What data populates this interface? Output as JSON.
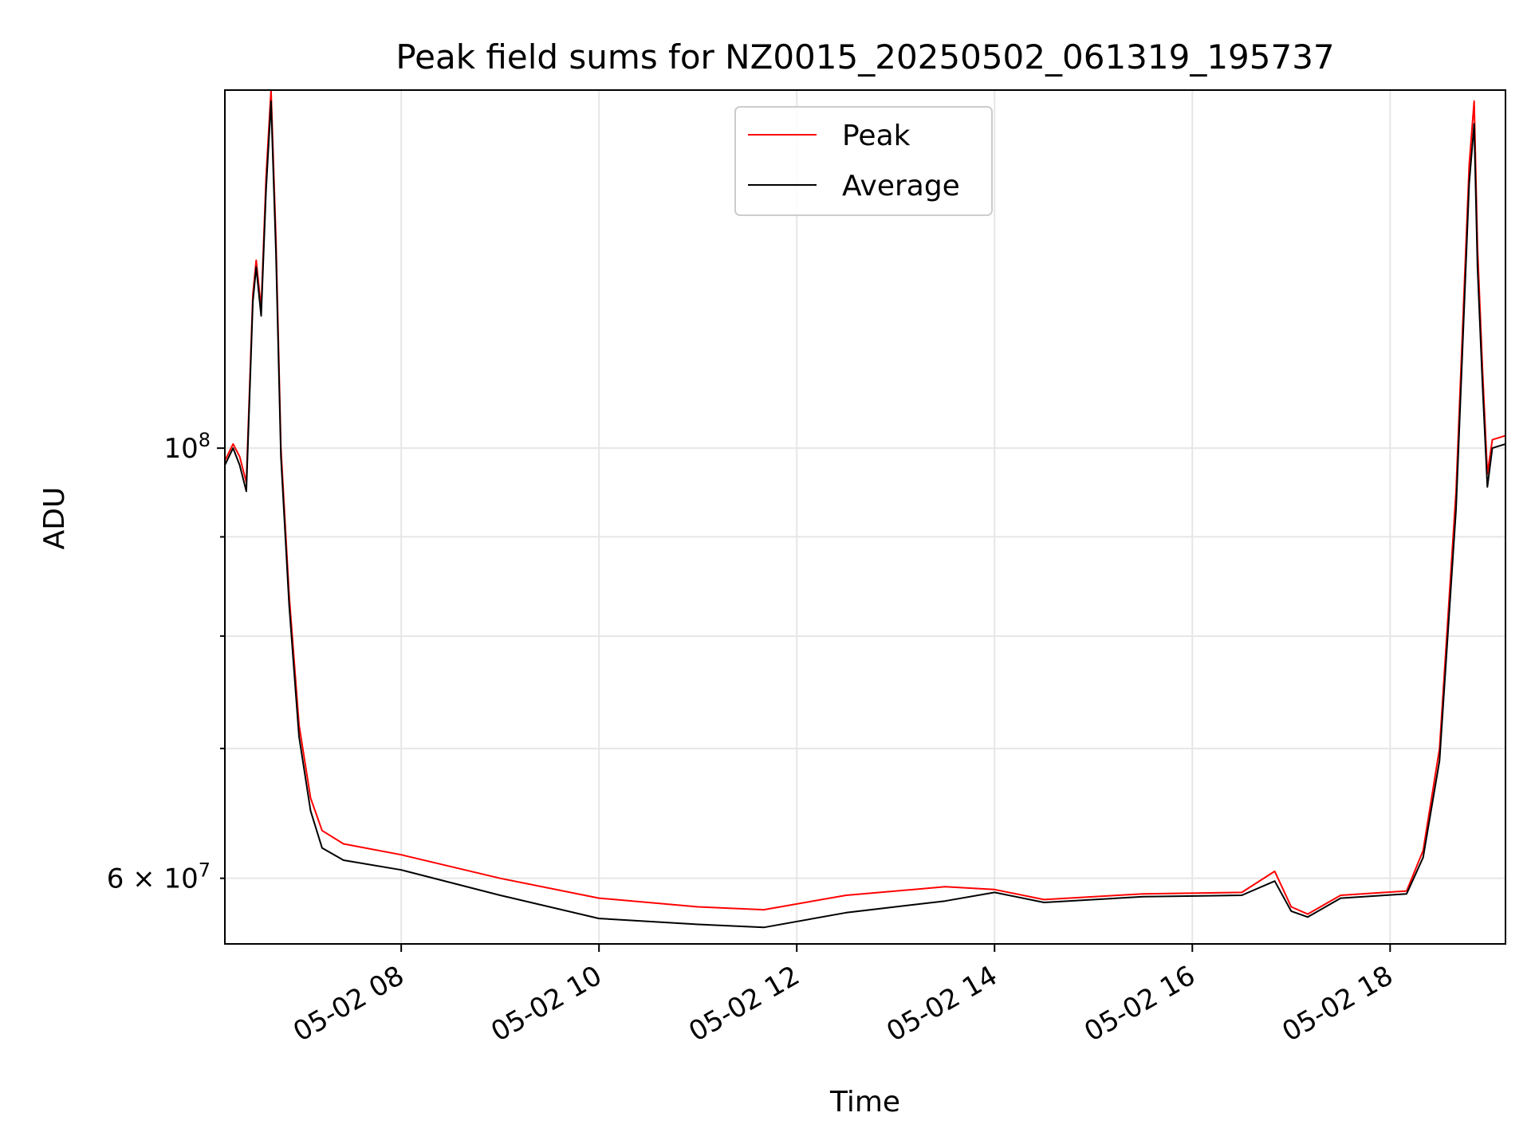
{
  "chart_data": {
    "type": "line",
    "title": "Peak field sums for NZ0015_20250502_061319_195737",
    "xlabel": "Time",
    "ylabel": "ADU",
    "yscale": "log",
    "x_range": [
      "2025-05-02 06:13",
      "2025-05-02 19:10"
    ],
    "ylim": [
      55500000,
      153000000
    ],
    "x_ticks": [
      "05-02 08",
      "05-02 10",
      "05-02 12",
      "05-02 14",
      "05-02 16",
      "05-02 18"
    ],
    "y_ticks_major": [
      {
        "value": 100000000,
        "base": "10",
        "exp": "8"
      }
    ],
    "y_ticks_minor": [
      {
        "value": 60000000,
        "mantissa": "6",
        "base": "10",
        "exp": "7"
      },
      {
        "value": 70000000
      },
      {
        "value": 80000000
      },
      {
        "value": 90000000
      }
    ],
    "grid": true,
    "legend_position": "upper center",
    "series": [
      {
        "name": "Peak",
        "color": "#ff0000",
        "points": [
          [
            "2025-05-02 06:13",
            98500000
          ],
          [
            "2025-05-02 06:18",
            100500000
          ],
          [
            "2025-05-02 06:22",
            99000000
          ],
          [
            "2025-05-02 06:26",
            96000000
          ],
          [
            "2025-05-02 06:30",
            120000000
          ],
          [
            "2025-05-02 06:32",
            125000000
          ],
          [
            "2025-05-02 06:35",
            118000000
          ],
          [
            "2025-05-02 06:38",
            138000000
          ],
          [
            "2025-05-02 06:41",
            153000000
          ],
          [
            "2025-05-02 06:44",
            128000000
          ],
          [
            "2025-05-02 06:47",
            100000000
          ],
          [
            "2025-05-02 06:52",
            84000000
          ],
          [
            "2025-05-02 06:58",
            72000000
          ],
          [
            "2025-05-02 07:05",
            66000000
          ],
          [
            "2025-05-02 07:12",
            63500000
          ],
          [
            "2025-05-02 07:25",
            62500000
          ],
          [
            "2025-05-02 08:00",
            61700000
          ],
          [
            "2025-05-02 09:00",
            60000000
          ],
          [
            "2025-05-02 10:00",
            58600000
          ],
          [
            "2025-05-02 11:00",
            58000000
          ],
          [
            "2025-05-02 11:40",
            57800000
          ],
          [
            "2025-05-02 12:30",
            58800000
          ],
          [
            "2025-05-02 13:30",
            59400000
          ],
          [
            "2025-05-02 14:00",
            59200000
          ],
          [
            "2025-05-02 14:30",
            58500000
          ],
          [
            "2025-05-02 15:30",
            58900000
          ],
          [
            "2025-05-02 16:30",
            59000000
          ],
          [
            "2025-05-02 16:50",
            60500000
          ],
          [
            "2025-05-02 17:00",
            58000000
          ],
          [
            "2025-05-02 17:10",
            57500000
          ],
          [
            "2025-05-02 17:30",
            58800000
          ],
          [
            "2025-05-02 18:10",
            59100000
          ],
          [
            "2025-05-02 18:20",
            62000000
          ],
          [
            "2025-05-02 18:30",
            70000000
          ],
          [
            "2025-05-02 18:40",
            95000000
          ],
          [
            "2025-05-02 18:48",
            140000000
          ],
          [
            "2025-05-02 18:51",
            151000000
          ],
          [
            "2025-05-02 18:53",
            127000000
          ],
          [
            "2025-05-02 18:56",
            110000000
          ],
          [
            "2025-05-02 18:59",
            97000000
          ],
          [
            "2025-05-02 19:02",
            101000000
          ],
          [
            "2025-05-02 19:10",
            101500000
          ]
        ]
      },
      {
        "name": "Average",
        "color": "#000000",
        "points": [
          [
            "2025-05-02 06:13",
            98000000
          ],
          [
            "2025-05-02 06:18",
            100000000
          ],
          [
            "2025-05-02 06:22",
            98000000
          ],
          [
            "2025-05-02 06:26",
            95000000
          ],
          [
            "2025-05-02 06:30",
            119000000
          ],
          [
            "2025-05-02 06:32",
            124000000
          ],
          [
            "2025-05-02 06:35",
            117000000
          ],
          [
            "2025-05-02 06:38",
            136000000
          ],
          [
            "2025-05-02 06:41",
            151000000
          ],
          [
            "2025-05-02 06:44",
            126000000
          ],
          [
            "2025-05-02 06:47",
            99000000
          ],
          [
            "2025-05-02 06:52",
            83000000
          ],
          [
            "2025-05-02 06:58",
            71000000
          ],
          [
            "2025-05-02 07:05",
            65000000
          ],
          [
            "2025-05-02 07:12",
            62200000
          ],
          [
            "2025-05-02 07:25",
            61300000
          ],
          [
            "2025-05-02 08:00",
            60600000
          ],
          [
            "2025-05-02 09:00",
            58800000
          ],
          [
            "2025-05-02 10:00",
            57200000
          ],
          [
            "2025-05-02 11:00",
            56800000
          ],
          [
            "2025-05-02 11:40",
            56600000
          ],
          [
            "2025-05-02 12:30",
            57600000
          ],
          [
            "2025-05-02 13:30",
            58400000
          ],
          [
            "2025-05-02 14:00",
            59000000
          ],
          [
            "2025-05-02 14:30",
            58300000
          ],
          [
            "2025-05-02 15:30",
            58700000
          ],
          [
            "2025-05-02 16:30",
            58800000
          ],
          [
            "2025-05-02 16:50",
            59800000
          ],
          [
            "2025-05-02 17:00",
            57700000
          ],
          [
            "2025-05-02 17:10",
            57300000
          ],
          [
            "2025-05-02 17:30",
            58600000
          ],
          [
            "2025-05-02 18:10",
            58900000
          ],
          [
            "2025-05-02 18:20",
            61500000
          ],
          [
            "2025-05-02 18:30",
            69000000
          ],
          [
            "2025-05-02 18:40",
            93000000
          ],
          [
            "2025-05-02 18:48",
            137000000
          ],
          [
            "2025-05-02 18:51",
            147000000
          ],
          [
            "2025-05-02 18:53",
            124000000
          ],
          [
            "2025-05-02 18:56",
            108000000
          ],
          [
            "2025-05-02 18:59",
            95500000
          ],
          [
            "2025-05-02 19:02",
            100000000
          ],
          [
            "2025-05-02 19:10",
            100500000
          ]
        ]
      }
    ]
  }
}
